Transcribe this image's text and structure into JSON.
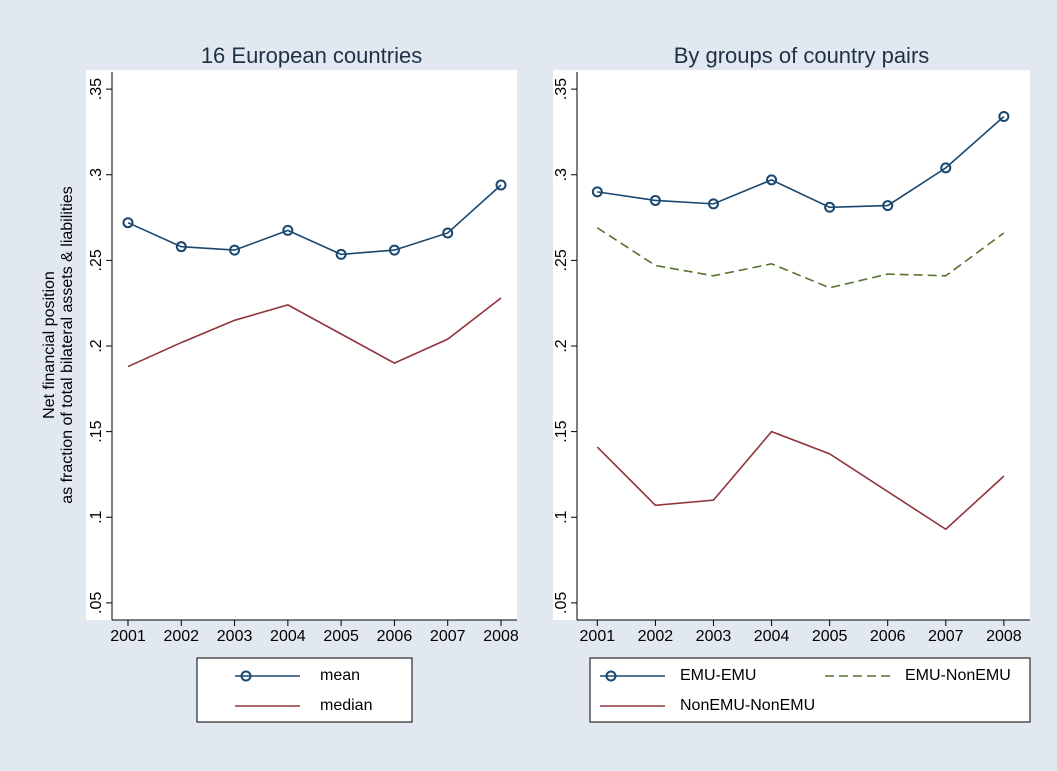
{
  "chart_data": [
    {
      "type": "line",
      "title": "16 European countries",
      "ylabel": [
        "Net financial position",
        "as fraction of total bilateral assets & liabilities"
      ],
      "x": [
        2001,
        2002,
        2003,
        2004,
        2005,
        2006,
        2007,
        2008
      ],
      "xlim": [
        2000.7,
        2008.3
      ],
      "xticks": [
        2001,
        2002,
        2003,
        2004,
        2005,
        2006,
        2007,
        2008
      ],
      "ylim": [
        0.04,
        0.36
      ],
      "yticks": [
        {
          "value": 0.05,
          "label": ".05"
        },
        {
          "value": 0.1,
          "label": ".1"
        },
        {
          "value": 0.15,
          "label": ".15"
        },
        {
          "value": 0.2,
          "label": ".2"
        },
        {
          "value": 0.25,
          "label": ".25"
        },
        {
          "value": 0.3,
          "label": ".3"
        },
        {
          "value": 0.35,
          "label": ".35"
        }
      ],
      "series": [
        {
          "name": "mean",
          "color": "#1a476f",
          "marker": "circle",
          "dash": false,
          "values": [
            0.272,
            0.258,
            0.256,
            0.2675,
            0.2535,
            0.256,
            0.266,
            0.294
          ]
        },
        {
          "name": "median",
          "color": "#90353b",
          "marker": "none",
          "dash": false,
          "values": [
            0.188,
            0.202,
            0.215,
            0.224,
            0.207,
            0.19,
            0.204,
            0.228
          ]
        }
      ]
    },
    {
      "type": "line",
      "title": "By groups of country pairs",
      "x": [
        2001,
        2002,
        2003,
        2004,
        2005,
        2006,
        2007,
        2008
      ],
      "xlim": [
        2000.65,
        2008.45
      ],
      "xticks": [
        2001,
        2002,
        2003,
        2004,
        2005,
        2006,
        2007,
        2008
      ],
      "ylim": [
        0.04,
        0.36
      ],
      "yticks": [
        {
          "value": 0.05,
          "label": ".05"
        },
        {
          "value": 0.1,
          "label": ".1"
        },
        {
          "value": 0.15,
          "label": ".15"
        },
        {
          "value": 0.2,
          "label": ".2"
        },
        {
          "value": 0.25,
          "label": ".25"
        },
        {
          "value": 0.3,
          "label": ".3"
        },
        {
          "value": 0.35,
          "label": ".35"
        }
      ],
      "series": [
        {
          "name": "EMU-EMU",
          "color": "#1a476f",
          "marker": "circle",
          "dash": false,
          "values": [
            0.29,
            0.285,
            0.283,
            0.297,
            0.281,
            0.282,
            0.304,
            0.334
          ]
        },
        {
          "name": "EMU-NonEMU",
          "color": "#55752f",
          "marker": "none",
          "dash": true,
          "values": [
            0.269,
            0.247,
            0.241,
            0.248,
            0.234,
            0.242,
            0.241,
            0.266
          ]
        },
        {
          "name": "NonEMU-NonEMU",
          "color": "#90353b",
          "marker": "none",
          "dash": false,
          "values": [
            0.141,
            0.107,
            0.11,
            0.15,
            0.137,
            0.115,
            0.093,
            0.124
          ]
        }
      ]
    }
  ]
}
